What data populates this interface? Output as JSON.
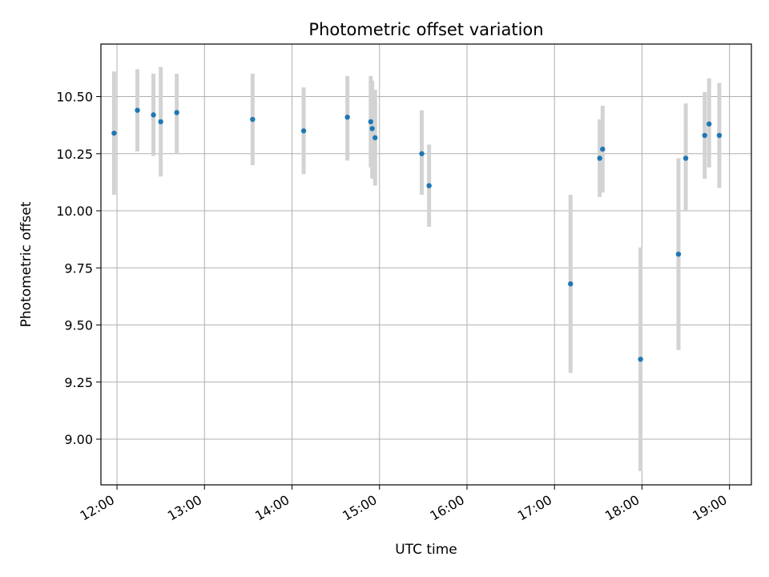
{
  "chart_data": {
    "type": "scatter",
    "title": "Photometric offset variation",
    "xlabel": "UTC time",
    "ylabel": "Photometric offset",
    "xlim": [
      "11:49",
      "19:15"
    ],
    "ylim": [
      8.8,
      10.73
    ],
    "x_ticks": [
      "12:00",
      "13:00",
      "14:00",
      "15:00",
      "16:00",
      "17:00",
      "18:00",
      "19:00"
    ],
    "y_ticks": [
      "9.00",
      "9.25",
      "9.50",
      "9.75",
      "10.00",
      "10.25",
      "10.50"
    ],
    "grid": true,
    "marker_color": "#1f77b4",
    "errorbar_color": "#d3d3d3",
    "points": [
      {
        "t": "11:58",
        "y": 10.34,
        "lo": 10.07,
        "hi": 10.61
      },
      {
        "t": "12:14",
        "y": 10.44,
        "lo": 10.26,
        "hi": 10.62
      },
      {
        "t": "12:25",
        "y": 10.42,
        "lo": 10.24,
        "hi": 10.6
      },
      {
        "t": "12:30",
        "y": 10.39,
        "lo": 10.15,
        "hi": 10.63
      },
      {
        "t": "12:41",
        "y": 10.43,
        "lo": 10.25,
        "hi": 10.6
      },
      {
        "t": "13:33",
        "y": 10.4,
        "lo": 10.2,
        "hi": 10.6
      },
      {
        "t": "14:08",
        "y": 10.35,
        "lo": 10.16,
        "hi": 10.54
      },
      {
        "t": "14:38",
        "y": 10.41,
        "lo": 10.22,
        "hi": 10.59
      },
      {
        "t": "14:54",
        "y": 10.39,
        "lo": 10.19,
        "hi": 10.59
      },
      {
        "t": "14:55",
        "y": 10.36,
        "lo": 10.14,
        "hi": 10.57
      },
      {
        "t": "14:57",
        "y": 10.32,
        "lo": 10.11,
        "hi": 10.53
      },
      {
        "t": "15:29",
        "y": 10.25,
        "lo": 10.07,
        "hi": 10.44
      },
      {
        "t": "15:34",
        "y": 10.11,
        "lo": 9.93,
        "hi": 10.29
      },
      {
        "t": "17:11",
        "y": 9.68,
        "lo": 9.29,
        "hi": 10.07
      },
      {
        "t": "17:31",
        "y": 10.23,
        "lo": 10.06,
        "hi": 10.4
      },
      {
        "t": "17:33",
        "y": 10.27,
        "lo": 10.08,
        "hi": 10.46
      },
      {
        "t": "17:59",
        "y": 9.35,
        "lo": 8.86,
        "hi": 9.84
      },
      {
        "t": "18:25",
        "y": 9.81,
        "lo": 9.39,
        "hi": 10.23
      },
      {
        "t": "18:30",
        "y": 10.23,
        "lo": 10.0,
        "hi": 10.47
      },
      {
        "t": "18:43",
        "y": 10.33,
        "lo": 10.14,
        "hi": 10.52
      },
      {
        "t": "18:46",
        "y": 10.38,
        "lo": 10.19,
        "hi": 10.58
      },
      {
        "t": "18:53",
        "y": 10.33,
        "lo": 10.1,
        "hi": 10.56
      }
    ]
  }
}
